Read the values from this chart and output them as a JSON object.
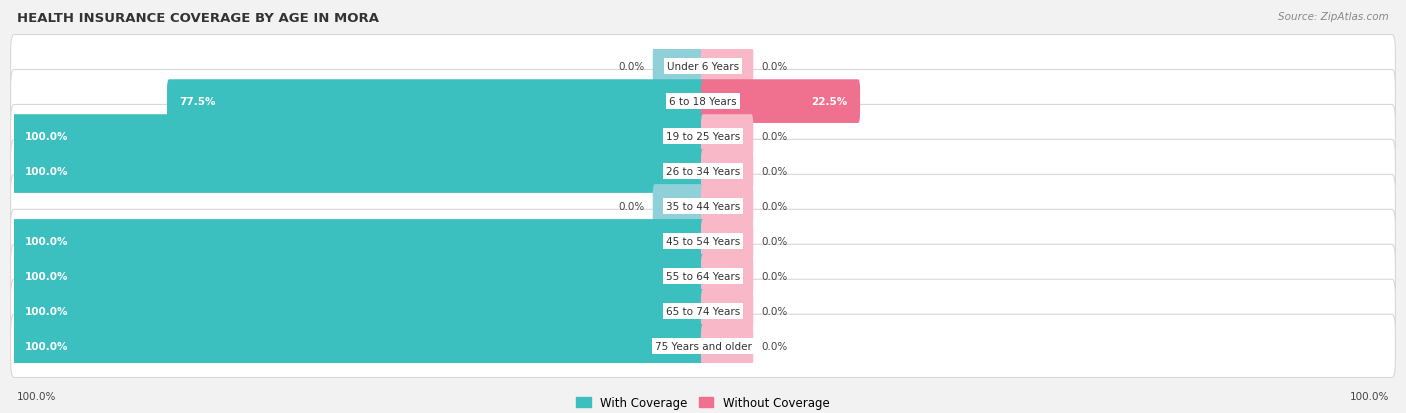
{
  "title": "HEALTH INSURANCE COVERAGE BY AGE IN MORA",
  "source": "Source: ZipAtlas.com",
  "categories": [
    "Under 6 Years",
    "6 to 18 Years",
    "19 to 25 Years",
    "26 to 34 Years",
    "35 to 44 Years",
    "45 to 54 Years",
    "55 to 64 Years",
    "65 to 74 Years",
    "75 Years and older"
  ],
  "with_coverage": [
    0.0,
    77.5,
    100.0,
    100.0,
    0.0,
    100.0,
    100.0,
    100.0,
    100.0
  ],
  "without_coverage": [
    0.0,
    22.5,
    0.0,
    0.0,
    0.0,
    0.0,
    0.0,
    0.0,
    0.0
  ],
  "color_with": "#3BBFBF",
  "color_without": "#F07090",
  "color_with_light": "#90D0D8",
  "color_without_light": "#F8B8C8",
  "bg_color": "#f2f2f2",
  "legend_with": "With Coverage",
  "legend_without": "Without Coverage",
  "axis_label_left": "100.0%",
  "axis_label_right": "100.0%",
  "max_value": 100.0,
  "stub_size": 7.0,
  "bar_height": 0.65,
  "figsize": [
    14.06,
    4.14
  ],
  "dpi": 100
}
